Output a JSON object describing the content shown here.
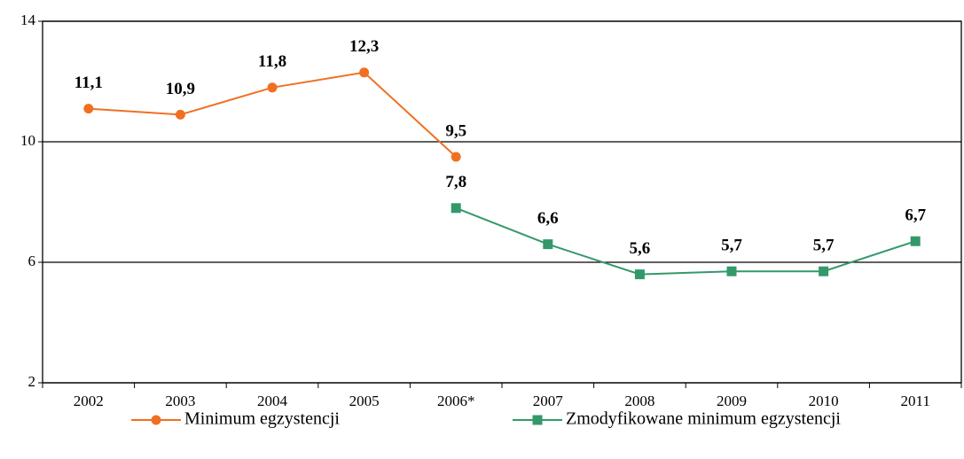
{
  "chart_data": {
    "type": "line",
    "categories": [
      "2002",
      "2003",
      "2004",
      "2005",
      "2006*",
      "2007",
      "2008",
      "2009",
      "2010",
      "2011"
    ],
    "series": [
      {
        "name": "Minimum egzystencji",
        "color": "#f07022",
        "marker": "circle",
        "values": [
          11.1,
          10.9,
          11.8,
          12.3,
          9.5,
          null,
          null,
          null,
          null,
          null
        ],
        "value_labels": [
          "11,1",
          "10,9",
          "11,8",
          "12,3",
          "9,5",
          null,
          null,
          null,
          null,
          null
        ]
      },
      {
        "name": "Zmodyfikowane minimum egzystencji",
        "color": "#33996a",
        "marker": "square",
        "values": [
          null,
          null,
          null,
          null,
          7.8,
          6.6,
          5.6,
          5.7,
          5.7,
          6.7
        ],
        "value_labels": [
          null,
          null,
          null,
          null,
          "7,8",
          "6,6",
          "5,6",
          "5,7",
          "5,7",
          "6,7"
        ]
      }
    ],
    "ylim": [
      2,
      14
    ],
    "yticks": [
      2,
      6,
      10,
      14
    ],
    "grid": true,
    "legend": "bottom"
  }
}
